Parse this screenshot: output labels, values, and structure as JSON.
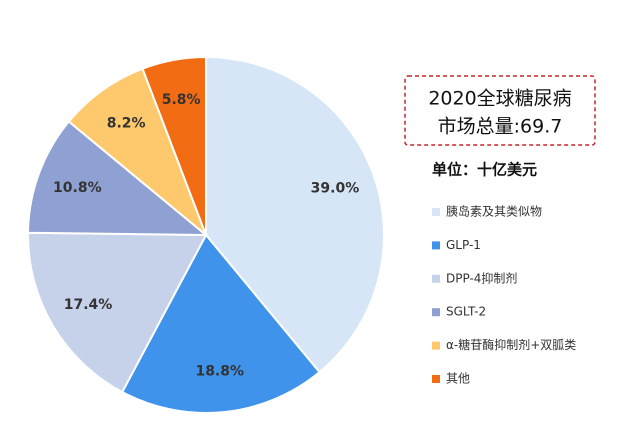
{
  "chart_data": {
    "type": "pie",
    "title": "2020全球糖尿病",
    "subtitle": "市场总量:69.7",
    "unit": "单位：十亿美元",
    "categories": [
      "胰岛素及其类似物",
      "GLP-1",
      "DPP-4抑制剂",
      "SGLT-2",
      "α-糖苷酶抑制剂+双胍类",
      "其他"
    ],
    "values": [
      39.0,
      18.8,
      17.4,
      10.8,
      8.2,
      5.8
    ],
    "value_labels": [
      "39.0%",
      "18.8%",
      "17.4%",
      "10.8%",
      "8.2%",
      "5.8%"
    ],
    "colors": [
      "#d6e6f7",
      "#3f93eb",
      "#c6d1ea",
      "#8ea1d2",
      "#fdc96c",
      "#f26c14"
    ]
  }
}
